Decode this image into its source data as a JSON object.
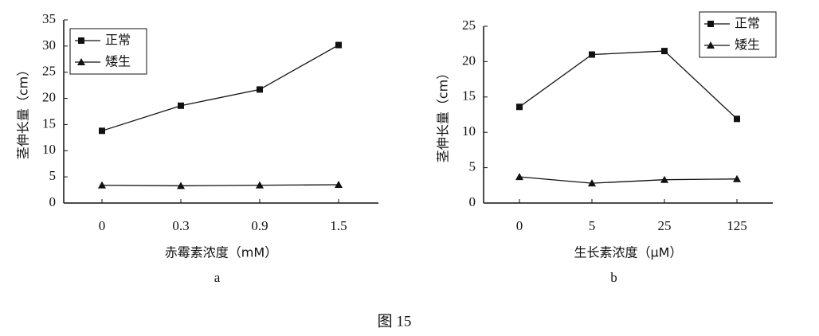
{
  "chart_data": [
    {
      "type": "line",
      "label": "a",
      "xlabel": "赤霉素浓度（mM）",
      "ylabel": "茎伸长量（cm）",
      "categories": [
        "0",
        "0.3",
        "0.9",
        "1.5"
      ],
      "series": [
        {
          "name": "正常",
          "color": "#111111",
          "marker": "square",
          "values": [
            13.8,
            18.6,
            21.7,
            30.2
          ]
        },
        {
          "name": "矮生",
          "color": "#111111",
          "marker": "triangle",
          "values": [
            3.4,
            3.3,
            3.4,
            3.5
          ]
        }
      ],
      "ylim": [
        0,
        35
      ],
      "yticks": [
        0,
        5,
        10,
        15,
        20,
        25,
        30,
        35
      ],
      "grid": false,
      "legend": "upper left"
    },
    {
      "type": "line",
      "label": "b",
      "xlabel": "生长素浓度（μM）",
      "ylabel": "茎伸长量（cm）",
      "categories": [
        "0",
        "5",
        "25",
        "125"
      ],
      "series": [
        {
          "name": "正常",
          "color": "#111111",
          "marker": "square",
          "values": [
            13.6,
            21.0,
            21.5,
            11.9
          ]
        },
        {
          "name": "矮生",
          "color": "#111111",
          "marker": "triangle",
          "values": [
            3.7,
            2.8,
            3.3,
            3.4
          ]
        }
      ],
      "ylim": [
        0,
        25
      ],
      "yticks": [
        0,
        5,
        10,
        15,
        20,
        25
      ],
      "grid": false,
      "legend": "upper right"
    }
  ],
  "caption": "图 15"
}
